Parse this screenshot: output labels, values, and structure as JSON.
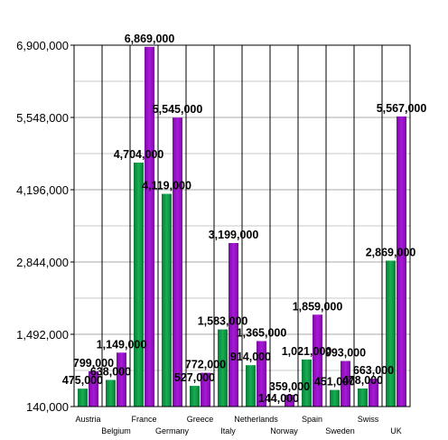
{
  "chart_data": {
    "type": "bar",
    "title": "",
    "xlabel": "",
    "ylabel": "",
    "categories": [
      "Austria",
      "Belgium",
      "France",
      "Germany",
      "Greece",
      "Italy",
      "Netherlands",
      "Norway",
      "Spain",
      "Sweden",
      "Swiss",
      "UK"
    ],
    "series": [
      {
        "color": "#109a48",
        "values": [
          475000,
          638000,
          4704000,
          4119000,
          527000,
          1583000,
          914000,
          144000,
          1021000,
          451000,
          478000,
          2869000
        ],
        "labels": [
          "475,000",
          "638,000",
          "4,704,000",
          "4,119,000",
          "527,000",
          "1,583,000",
          "914,000",
          "144,000",
          "1,021,000",
          "451,000",
          "478,000",
          "2,869,000"
        ]
      },
      {
        "color": "#9a10c8",
        "values": [
          799000,
          1149000,
          6869000,
          5545000,
          772000,
          3199000,
          1365000,
          359000,
          1859000,
          993000,
          663000,
          5567000
        ],
        "labels": [
          "799,000",
          "1,149,000",
          "6,869,000",
          "5,545,000",
          "772,000",
          "3,199,000",
          "1,365,000",
          "359,000",
          "1,859,000",
          "993,000",
          "663,000",
          "5,567,000"
        ]
      }
    ],
    "ylim": [
      140000,
      6900000
    ],
    "yticks": [
      140000,
      1492000,
      2844000,
      4196000,
      5548000,
      6900000
    ],
    "ytick_labels": [
      "140,000",
      "1,492,000",
      "2,844,000",
      "4,196,000",
      "5,548,000",
      "6,900,000"
    ],
    "grid": true,
    "legend": "none"
  }
}
